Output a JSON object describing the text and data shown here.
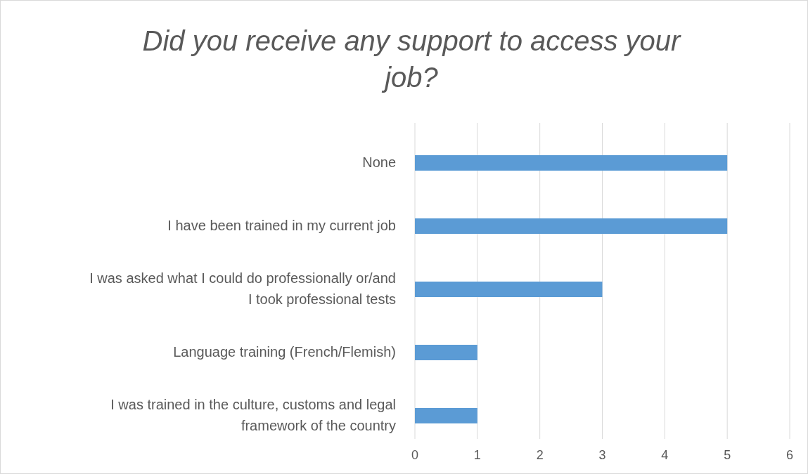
{
  "chart_data": {
    "type": "bar",
    "orientation": "horizontal",
    "title": "Did you receive any support to access your job?",
    "categories": [
      "None",
      "I have been trained in my current job",
      "I was asked what I could do professionally or/and I took professional tests",
      "Language training (French/Flemish)",
      "I was trained in the culture, customs and legal framework of the country"
    ],
    "values": [
      5,
      5,
      3,
      1,
      1
    ],
    "color": "#5b9bd5",
    "xlim": [
      0,
      6
    ],
    "xticks": [
      0,
      1,
      2,
      3,
      4,
      5,
      6
    ],
    "grid": "x"
  }
}
